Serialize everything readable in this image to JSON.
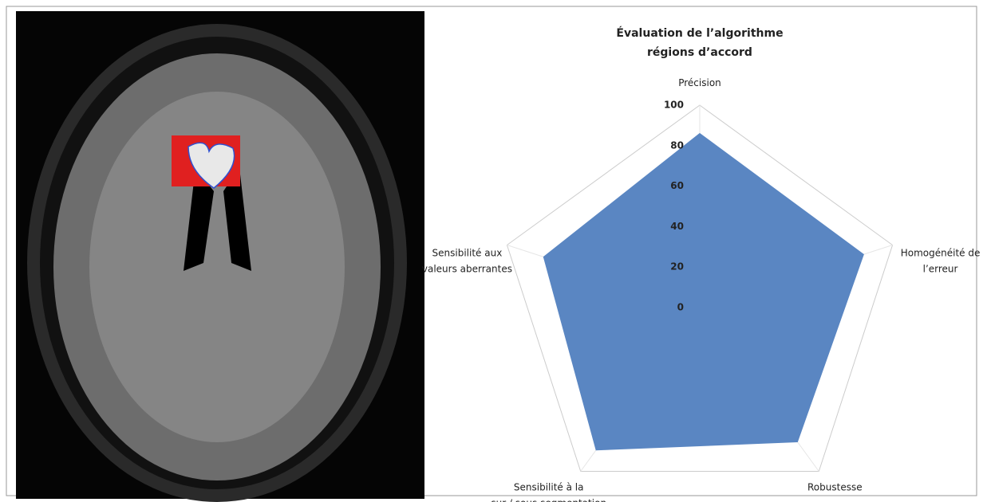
{
  "chart_data": {
    "type": "radar",
    "title": "Évaluation de l’algorithme",
    "subtitle": "régions d’accord",
    "categories": [
      "Précision",
      "Homogénéité de\nl’erreur",
      "Robustesse",
      "Sensibilité à la\nsur / sous segmentation",
      "Sensibilité aux\nvaleurs aberrantes"
    ],
    "values": [
      86,
      85,
      82,
      87,
      81
    ],
    "color": "#5a86c2",
    "rlim": [
      0,
      100
    ],
    "rticks": [
      0,
      20,
      40,
      60,
      80,
      100
    ]
  }
}
